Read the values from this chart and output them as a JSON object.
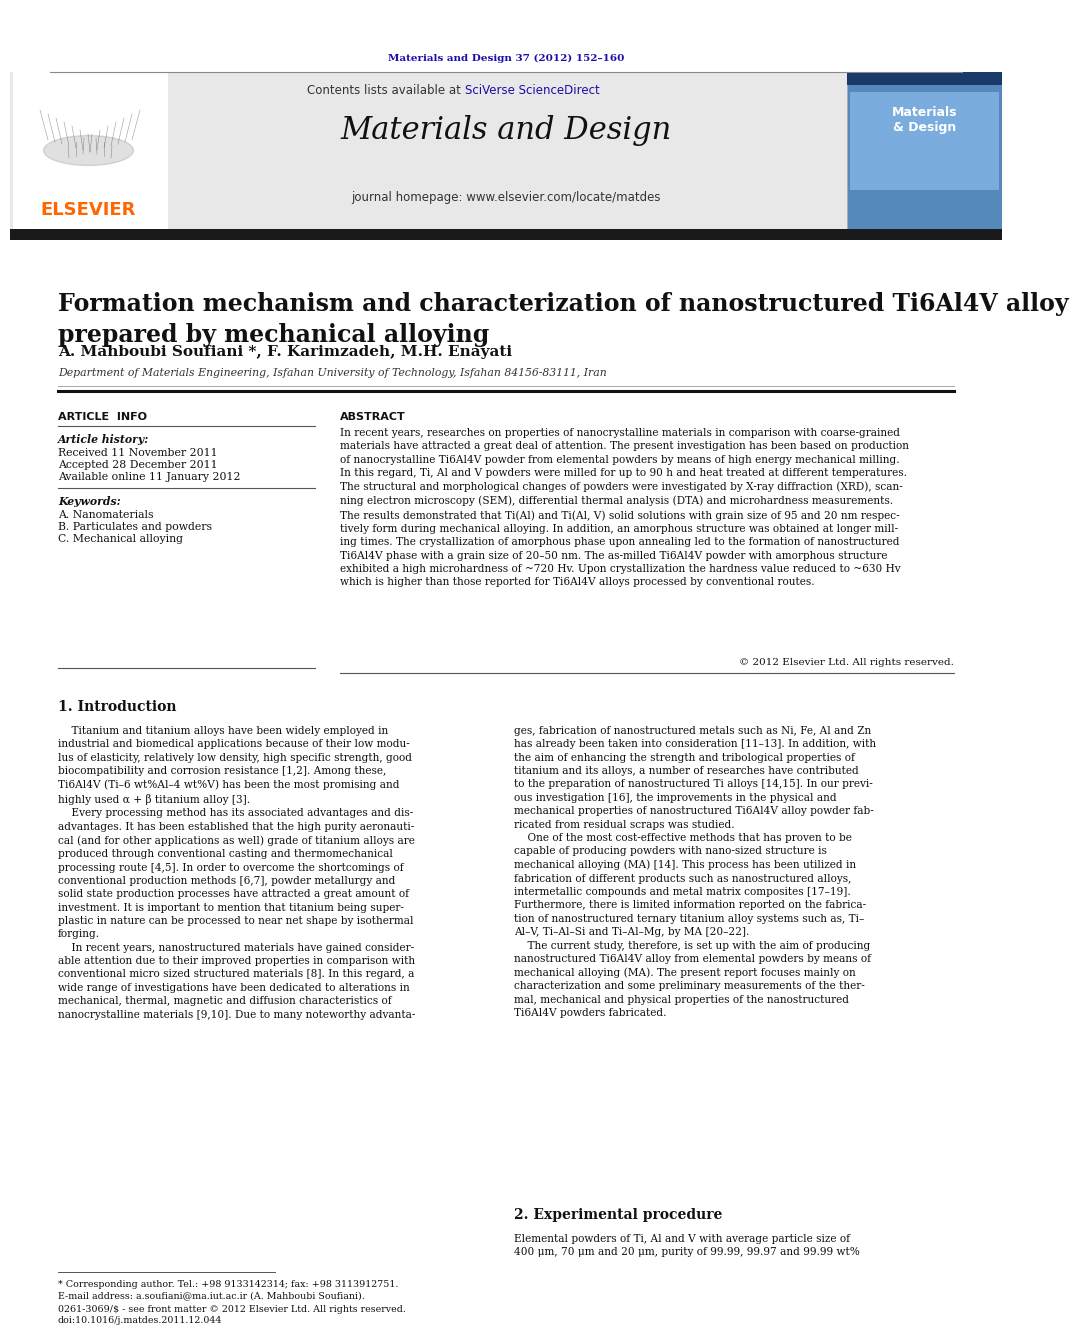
{
  "background_color": "#ffffff",
  "journal_ref_text": "Materials and Design 37 (2012) 152–160",
  "journal_ref_color": "#1a0dab",
  "header_bg_color": "#e8e8e8",
  "header_text_contents": "Contents lists available at ",
  "header_sciverse": "SciVerse ScienceDirect",
  "header_sciverse_color": "#1a0dab",
  "header_journal_name": "Materials and Design",
  "header_homepage": "journal homepage: www.elsevier.com/locate/matdes",
  "thick_bar_color": "#1a1a1a",
  "article_title": "Formation mechanism and characterization of nanostructured Ti6Al4V alloy\nprepared by mechanical alloying",
  "authors": "A. Mahboubi Soufiani *, F. Karimzadeh, M.H. Enayati",
  "affiliation": "Department of Materials Engineering, Isfahan University of Technology, Isfahan 84156-83111, Iran",
  "article_info_header": "ARTICLE  INFO",
  "abstract_header": "ABSTRACT",
  "article_history_label": "Article history:",
  "received": "Received 11 November 2011",
  "accepted": "Accepted 28 December 2011",
  "available": "Available online 11 January 2012",
  "keywords_label": "Keywords:",
  "keyword1": "A. Nanomaterials",
  "keyword2": "B. Particulates and powders",
  "keyword3": "C. Mechanical alloying",
  "abstract_text": "In recent years, researches on properties of nanocrystalline materials in comparison with coarse-grained\nmaterials have attracted a great deal of attention. The present investigation has been based on production\nof nanocrystalline Ti6Al4V powder from elemental powders by means of high energy mechanical milling.\nIn this regard, Ti, Al and V powders were milled for up to 90 h and heat treated at different temperatures.\nThe structural and morphological changes of powders were investigated by X-ray diffraction (XRD), scan-\nning electron microscopy (SEM), differential thermal analysis (DTA) and microhardness measurements.\nThe results demonstrated that Ti(Al) and Ti(Al, V) solid solutions with grain size of 95 and 20 nm respec-\ntively form during mechanical alloying. In addition, an amorphous structure was obtained at longer mill-\ning times. The crystallization of amorphous phase upon annealing led to the formation of nanostructured\nTi6Al4V phase with a grain size of 20–50 nm. The as-milled Ti6Al4V powder with amorphous structure\nexhibited a high microhardness of ~720 Hv. Upon crystallization the hardness value reduced to ~630 Hv\nwhich is higher than those reported for Ti6Al4V alloys processed by conventional routes.",
  "copyright_text": "© 2012 Elsevier Ltd. All rights reserved.",
  "intro_header": "1. Introduction",
  "intro_col1": "    Titanium and titanium alloys have been widely employed in\nindustrial and biomedical applications because of their low modu-\nlus of elasticity, relatively low density, high specific strength, good\nbiocompatibility and corrosion resistance [1,2]. Among these,\nTi6Al4V (Ti–6 wt%Al–4 wt%V) has been the most promising and\nhighly used α + β titanium alloy [3].\n    Every processing method has its associated advantages and dis-\nadvantages. It has been established that the high purity aeronauti-\ncal (and for other applications as well) grade of titanium alloys are\nproduced through conventional casting and thermomechanical\nprocessing route [4,5]. In order to overcome the shortcomings of\nconventional production methods [6,7], powder metallurgy and\nsolid state production processes have attracted a great amount of\ninvestment. It is important to mention that titanium being super-\nplastic in nature can be processed to near net shape by isothermal\nforging.\n    In recent years, nanostructured materials have gained consider-\nable attention due to their improved properties in comparison with\nconventional micro sized structured materials [8]. In this regard, a\nwide range of investigations have been dedicated to alterations in\nmechanical, thermal, magnetic and diffusion characteristics of\nnanocrystalline materials [9,10]. Due to many noteworthy advanta-",
  "intro_col2": "ges, fabrication of nanostructured metals such as Ni, Fe, Al and Zn\nhas already been taken into consideration [11–13]. In addition, with\nthe aim of enhancing the strength and tribological properties of\ntitanium and its alloys, a number of researches have contributed\nto the preparation of nanostructured Ti alloys [14,15]. In our previ-\nous investigation [16], the improvements in the physical and\nmechanical properties of nanostructured Ti6Al4V alloy powder fab-\nricated from residual scraps was studied.\n    One of the most cost-effective methods that has proven to be\ncapable of producing powders with nano-sized structure is\nmechanical alloying (MA) [14]. This process has been utilized in\nfabrication of different products such as nanostructured alloys,\nintermetallic compounds and metal matrix composites [17–19].\nFurthermore, there is limited information reported on the fabrica-\ntion of nanostructured ternary titanium alloy systems such as, Ti–\nAl–V, Ti–Al–Si and Ti–Al–Mg, by MA [20–22].\n    The current study, therefore, is set up with the aim of producing\nnanostructured Ti6Al4V alloy from elemental powders by means of\nmechanical alloying (MA). The present report focuses mainly on\ncharacterization and some preliminary measurements of the ther-\nmal, mechanical and physical properties of the nanostructured\nTi6Al4V powders fabricated.",
  "section2_header": "2. Experimental procedure",
  "section2_col2_text": "Elemental powders of Ti, Al and V with average particle size of\n400 μm, 70 μm and 20 μm, purity of 99.99, 99.97 and 99.99 wt%",
  "footnote_star": "* Corresponding author. Tel.: +98 9133142314; fax: +98 3113912751.",
  "footnote_email": "E-mail address: a.soufiani@ma.iut.ac.ir (A. Mahboubi Soufiani).",
  "footnote_issn": "0261-3069/$ - see front matter © 2012 Elsevier Ltd. All rights reserved.",
  "footnote_doi": "doi:10.1016/j.matdes.2011.12.044",
  "elsevier_text": "ELSEVIER",
  "elsevier_color": "#FF6600"
}
